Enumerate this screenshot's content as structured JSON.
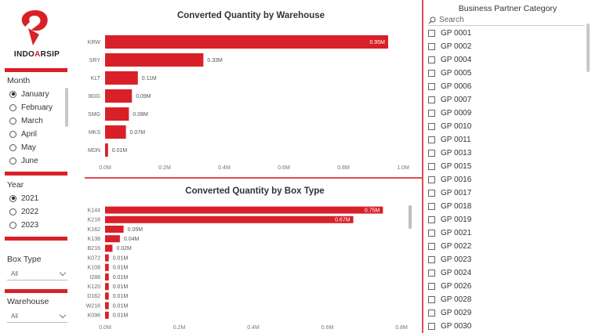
{
  "brand": {
    "logo_text_left": "INDO",
    "logo_text_mid": "A",
    "logo_text_right": "RSIP",
    "accent": "#d92028"
  },
  "month_slicer": {
    "title": "Month",
    "items": [
      {
        "label": "January",
        "selected": true
      },
      {
        "label": "February",
        "selected": false
      },
      {
        "label": "March",
        "selected": false
      },
      {
        "label": "April",
        "selected": false
      },
      {
        "label": "May",
        "selected": false
      },
      {
        "label": "June",
        "selected": false
      }
    ]
  },
  "year_slicer": {
    "title": "Year",
    "items": [
      {
        "label": "2021",
        "selected": true
      },
      {
        "label": "2022",
        "selected": false
      },
      {
        "label": "2023",
        "selected": false
      }
    ]
  },
  "box_type_filter": {
    "title": "Box Type",
    "value": "All"
  },
  "warehouse_filter": {
    "title": "Warehouse",
    "value": "All"
  },
  "category_panel": {
    "title": "Business Partner Category",
    "search_placeholder": "Search",
    "items": [
      "GP 0001",
      "GP 0002",
      "GP 0004",
      "GP 0005",
      "GP 0006",
      "GP 0007",
      "GP 0009",
      "GP 0010",
      "GP 0011",
      "GP 0013",
      "GP 0015",
      "GP 0016",
      "GP 0017",
      "GP 0018",
      "GP 0019",
      "GP 0021",
      "GP 0022",
      "GP 0023",
      "GP 0024",
      "GP 0026",
      "GP 0028",
      "GP 0029",
      "GP 0030"
    ]
  },
  "chart_data": [
    {
      "type": "bar",
      "orientation": "horizontal",
      "title": "Converted Quantity by Warehouse",
      "categories": [
        "KRW",
        "SRY",
        "KLT",
        "BDG",
        "SMG",
        "MKS",
        "MDN"
      ],
      "values": [
        0.95,
        0.33,
        0.11,
        0.09,
        0.08,
        0.07,
        0.01
      ],
      "value_labels": [
        "0.95M",
        "0.33M",
        "0.11M",
        "0.09M",
        "0.08M",
        "0.07M",
        "0.01M"
      ],
      "xlim": [
        0,
        1.0
      ],
      "xticks": [
        "0.0M",
        "0.2M",
        "0.4M",
        "0.6M",
        "0.8M",
        "1.0M"
      ],
      "color": "#d92028"
    },
    {
      "type": "bar",
      "orientation": "horizontal",
      "title": "Converted Quantity by Box Type",
      "categories": [
        "K144",
        "K216",
        "K162",
        "K138",
        "B216",
        "K072",
        "K108",
        "I288",
        "K120",
        "D162",
        "W216",
        "K096"
      ],
      "values": [
        0.75,
        0.67,
        0.05,
        0.04,
        0.02,
        0.01,
        0.01,
        0.01,
        0.01,
        0.01,
        0.01,
        0.01
      ],
      "value_labels": [
        "0.75M",
        "0.67M",
        "0.05M",
        "0.04M",
        "0.02M",
        "0.01M",
        "0.01M",
        "0.01M",
        "0.01M",
        "0.01M",
        "0.01M",
        "0.01M"
      ],
      "xlim": [
        0,
        0.8
      ],
      "xticks": [
        "0.0M",
        "0.2M",
        "0.4M",
        "0.6M",
        "0.8M"
      ],
      "color": "#d92028"
    }
  ]
}
